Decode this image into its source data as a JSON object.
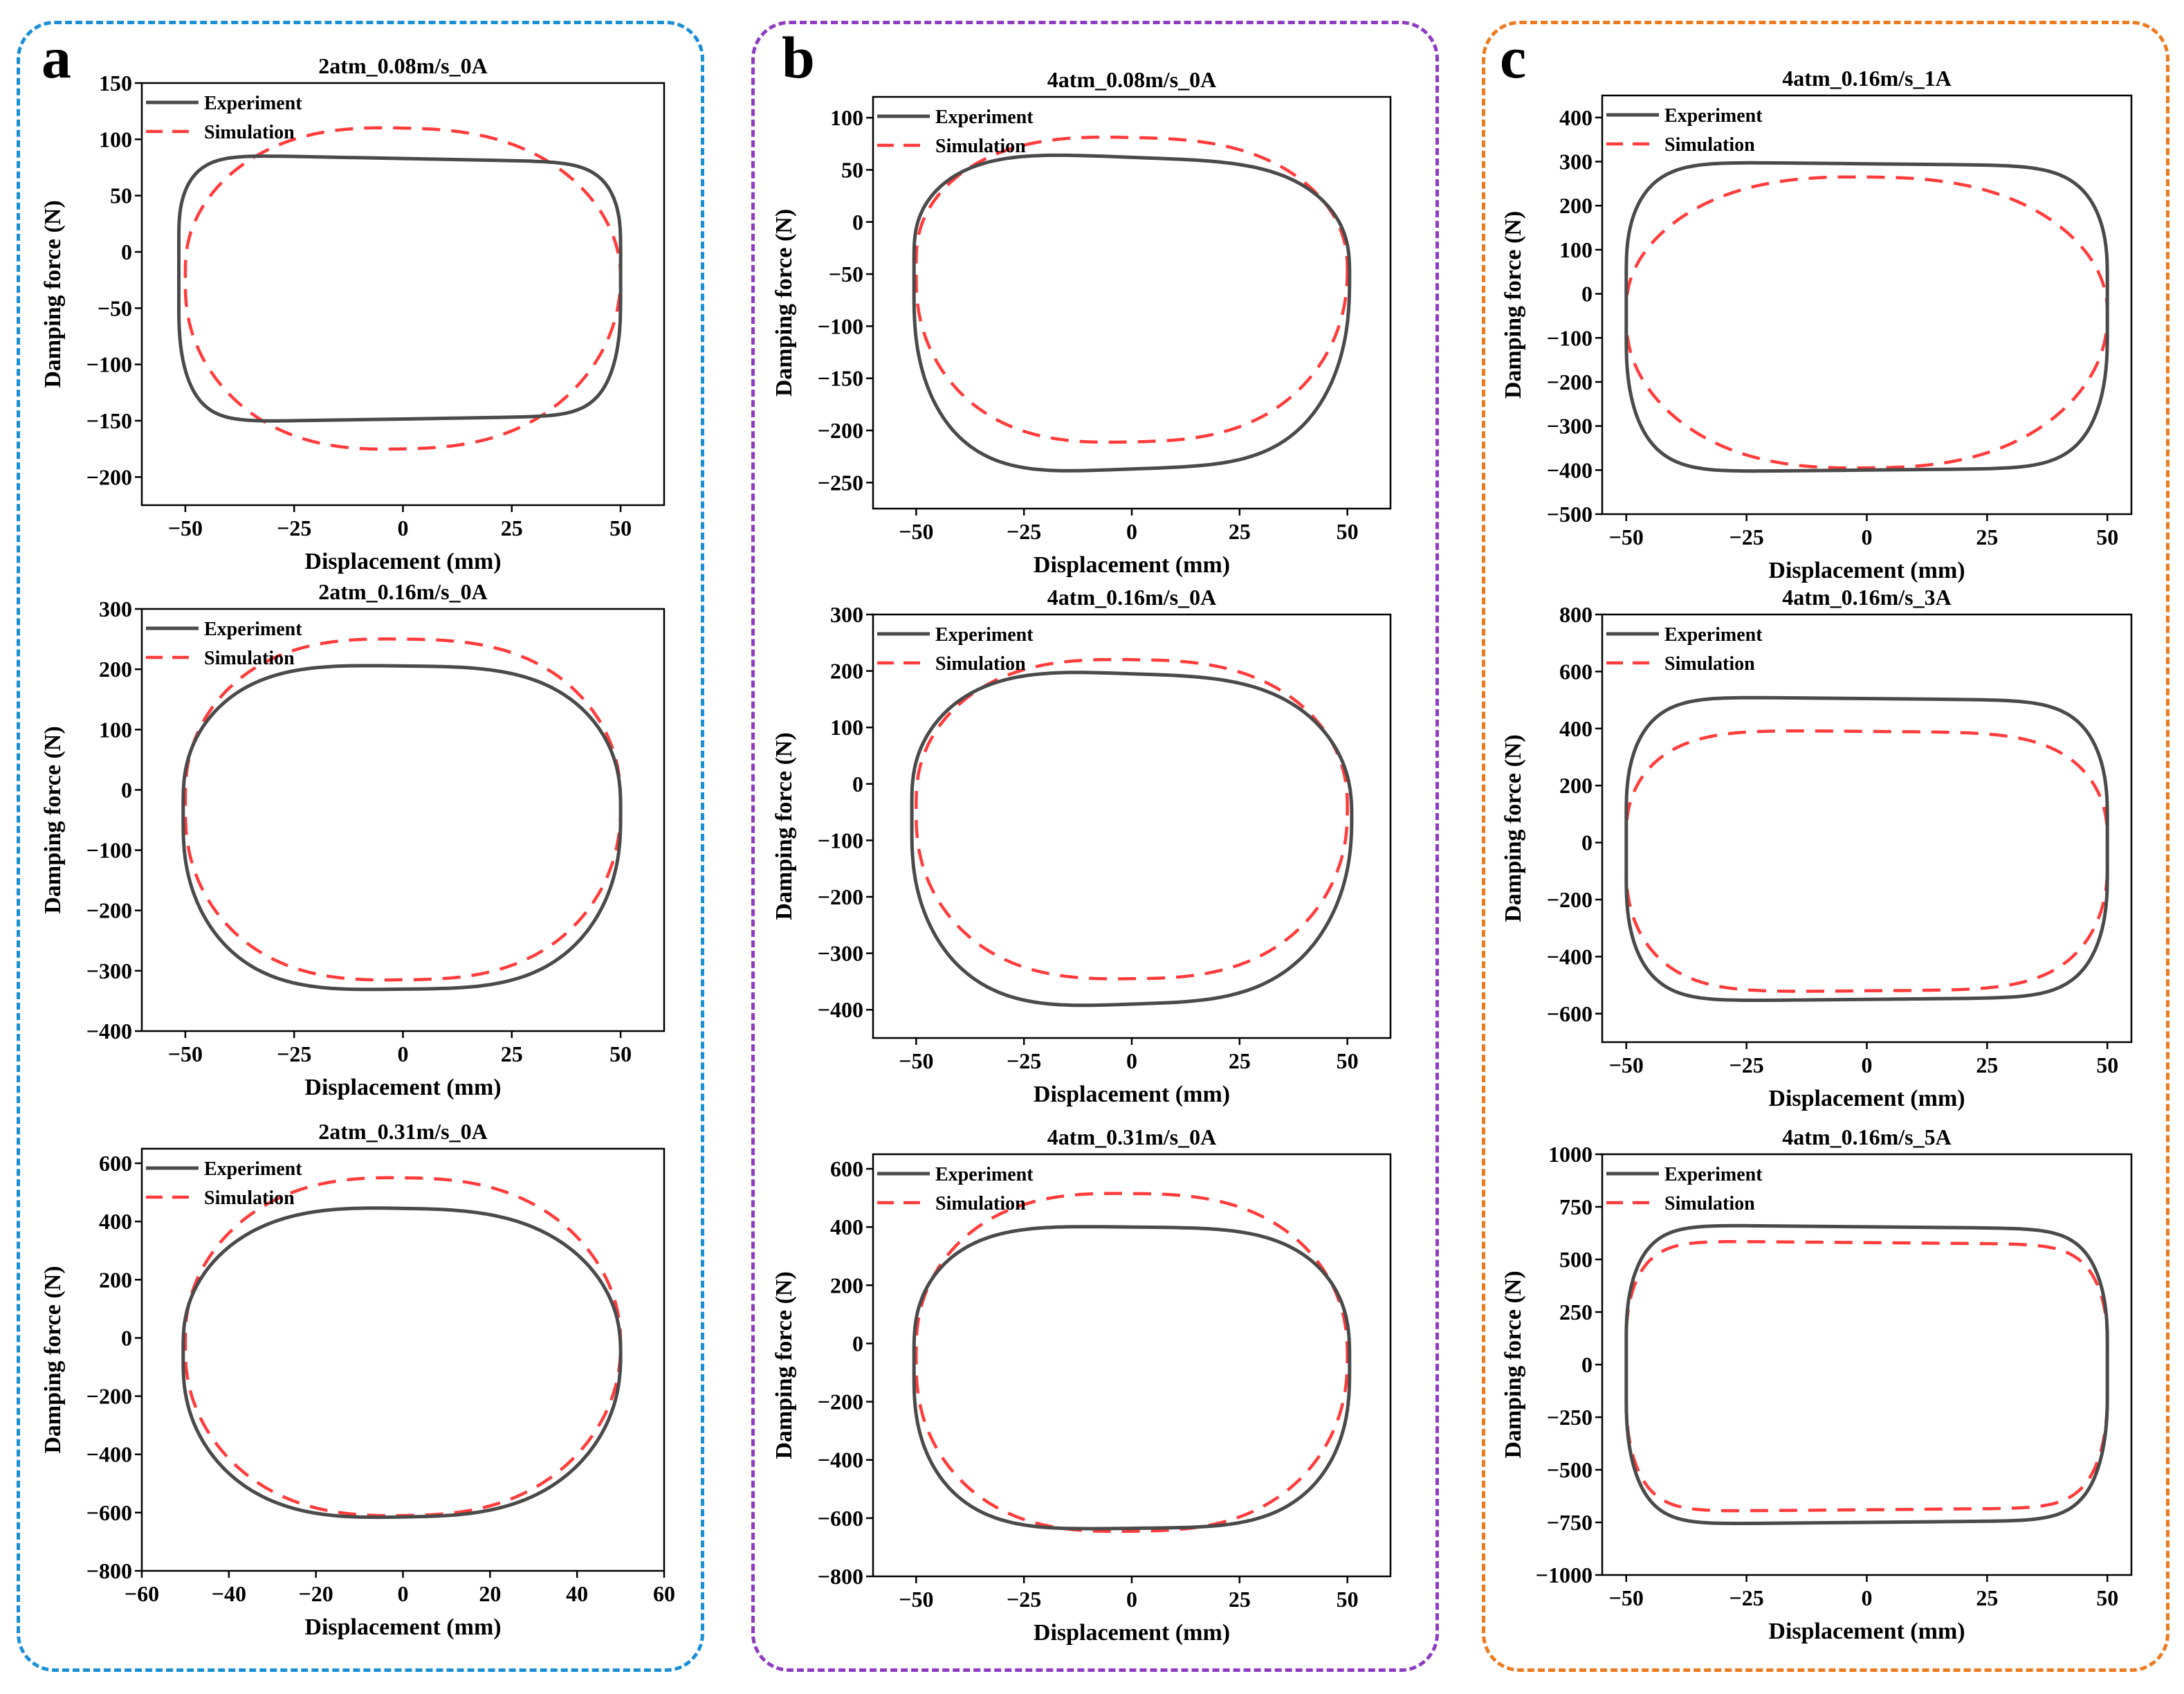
{
  "figure": {
    "colors": {
      "experiment": "#4a4a4a",
      "simulation": "#ff3b3b",
      "frame_a": "#1a8fd6",
      "frame_b": "#8e3cc2",
      "frame_c": "#ec7a1e"
    }
  },
  "groups": [
    {
      "label": "a"
    },
    {
      "label": "b"
    },
    {
      "label": "c"
    }
  ],
  "chart_data": [
    {
      "type": "line",
      "group": "a",
      "title": "2atm_0.08m/s_0A",
      "xlabel": "Displacement (mm)",
      "ylabel": "Damping force (N)",
      "xlim": [
        -60,
        60
      ],
      "ylim": [
        -225,
        150
      ],
      "xticks": [
        -50,
        -25,
        0,
        25,
        50
      ],
      "yticks": [
        -200,
        -150,
        -100,
        -50,
        0,
        50,
        100,
        150
      ],
      "legend": [
        "Experiment",
        "Simulation"
      ],
      "legend_position": "top-left",
      "series": [
        {
          "name": "Experiment",
          "style": "solid",
          "xc": -0.75,
          "yc": -42.5,
          "xa": 50.75,
          "ya": 125.5,
          "xb": 50.75,
          "yb": 106,
          "p": 10,
          "sk": 0.2,
          "fade": 0.5
        },
        {
          "name": "Simulation",
          "style": "dashed",
          "xc": 0,
          "yc": -32.5,
          "xa": 50,
          "ya": 142.5,
          "xb": 50,
          "yb": 142.5,
          "p": 2.6,
          "sk": 0.2,
          "fade": 0.3
        }
      ]
    },
    {
      "type": "line",
      "group": "a",
      "title": "2atm_0.16m/s_0A",
      "xlabel": "Displacement (mm)",
      "ylabel": "Damping force (N)",
      "xlim": [
        -60,
        60
      ],
      "ylim": [
        -400,
        300
      ],
      "xticks": [
        -50,
        -25,
        0,
        25,
        50
      ],
      "yticks": [
        -400,
        -300,
        -200,
        -100,
        0,
        100,
        200,
        300
      ],
      "legend": [
        "Experiment",
        "Simulation"
      ],
      "legend_position": "top-left",
      "series": [
        {
          "name": "Experiment",
          "style": "solid",
          "xc": -0.25,
          "yc": -62.5,
          "xa": 50.25,
          "ya": 268,
          "xb": 50.25,
          "yb": 268,
          "p": 3.5,
          "sk": 0.1,
          "fade": 0.4
        },
        {
          "name": "Simulation",
          "style": "dashed",
          "xc": 0,
          "yc": -32.5,
          "xa": 50,
          "ya": 282.5,
          "xb": 50,
          "yb": 282.5,
          "p": 2.8,
          "sk": 0.1,
          "fade": 0.3
        }
      ]
    },
    {
      "type": "line",
      "group": "a",
      "title": "2atm_0.31m/s_0A",
      "xlabel": "Displacement (mm)",
      "ylabel": "Damping force (N)",
      "xlim": [
        -60,
        60
      ],
      "ylim": [
        -800,
        650
      ],
      "xticks": [
        -60,
        -40,
        -20,
        0,
        20,
        40,
        60
      ],
      "yticks": [
        -800,
        -600,
        -400,
        -200,
        0,
        200,
        400,
        600
      ],
      "legend": [
        "Experiment",
        "Simulation"
      ],
      "legend_position": "top-left",
      "series": [
        {
          "name": "Experiment",
          "style": "solid",
          "xc": -0.25,
          "yc": -85,
          "xa": 50.25,
          "ya": 530,
          "xb": 50.25,
          "yb": 530,
          "p": 3.0,
          "sk": 0.15,
          "fade": 0.35
        },
        {
          "name": "Simulation",
          "style": "dashed",
          "xc": 0,
          "yc": -30,
          "xa": 50,
          "ya": 580,
          "xb": 50,
          "yb": 580,
          "p": 2.6,
          "sk": 0.1,
          "fade": 0.3
        }
      ]
    },
    {
      "type": "line",
      "group": "b",
      "title": "4atm_0.08m/s_0A",
      "xlabel": "Displacement (mm)",
      "ylabel": "Damping force (N)",
      "xlim": [
        -60,
        60
      ],
      "ylim": [
        -275,
        120
      ],
      "xticks": [
        -50,
        -25,
        0,
        25,
        50
      ],
      "yticks": [
        -250,
        -200,
        -150,
        -100,
        -50,
        0,
        50,
        100
      ],
      "legend": [
        "Experiment",
        "Simulation"
      ],
      "legend_position": "top-left",
      "series": [
        {
          "name": "Experiment",
          "style": "solid",
          "xc": 0,
          "yc": -87.5,
          "xa": 50.5,
          "ya": 149.5,
          "xb": 50.5,
          "yb": 149.5,
          "p": 4.0,
          "sk": 0.35,
          "fade": 0.4
        },
        {
          "name": "Simulation",
          "style": "dashed",
          "xc": 0,
          "yc": -65,
          "xa": 50,
          "ya": 146,
          "xb": 50,
          "yb": 146,
          "p": 2.8,
          "sk": 0.2,
          "fade": 0.3
        }
      ]
    },
    {
      "type": "line",
      "group": "b",
      "title": "4atm_0.16m/s_0A",
      "xlabel": "Displacement (mm)",
      "ylabel": "Damping force (N)",
      "xlim": [
        -60,
        60
      ],
      "ylim": [
        -450,
        300
      ],
      "xticks": [
        -50,
        -25,
        0,
        25,
        50
      ],
      "yticks": [
        -400,
        -300,
        -200,
        -100,
        0,
        100,
        200,
        300
      ],
      "legend": [
        "Experiment",
        "Simulation"
      ],
      "legend_position": "top-left",
      "series": [
        {
          "name": "Experiment",
          "style": "solid",
          "xc": 0,
          "yc": -97.5,
          "xa": 51,
          "ya": 292.5,
          "xb": 51,
          "yb": 292.5,
          "p": 3.5,
          "sk": 0.3,
          "fade": 0.4
        },
        {
          "name": "Simulation",
          "style": "dashed",
          "xc": 0,
          "yc": -62.5,
          "xa": 50,
          "ya": 282.5,
          "xb": 50,
          "yb": 282.5,
          "p": 2.8,
          "sk": 0.1,
          "fade": 0.3
        }
      ]
    },
    {
      "type": "line",
      "group": "b",
      "title": "4atm_0.31m/s_0A",
      "xlabel": "Displacement (mm)",
      "ylabel": "Damping force (N)",
      "xlim": [
        -60,
        60
      ],
      "ylim": [
        -800,
        650
      ],
      "xticks": [
        -50,
        -25,
        0,
        25,
        50
      ],
      "yticks": [
        -800,
        -600,
        -400,
        -200,
        0,
        200,
        400,
        600
      ],
      "legend": [
        "Experiment",
        "Simulation"
      ],
      "legend_position": "top-left",
      "series": [
        {
          "name": "Experiment",
          "style": "solid",
          "xc": 0,
          "yc": -117.5,
          "xa": 50.5,
          "ya": 517.5,
          "xb": 50.5,
          "yb": 517.5,
          "p": 4.0,
          "sk": 0.1,
          "fade": 0.4
        },
        {
          "name": "Simulation",
          "style": "dashed",
          "xc": 0,
          "yc": -65,
          "xa": 50,
          "ya": 580,
          "xb": 50,
          "yb": 580,
          "p": 2.8,
          "sk": 0.1,
          "fade": 0.3
        }
      ]
    },
    {
      "type": "line",
      "group": "c",
      "title": "4atm_0.16m/s_1A",
      "xlabel": "Displacement (mm)",
      "ylabel": "Damping force (N)",
      "xlim": [
        -55,
        55
      ],
      "ylim": [
        -500,
        450
      ],
      "xticks": [
        -50,
        -25,
        0,
        25,
        50
      ],
      "yticks": [
        -500,
        -400,
        -300,
        -200,
        -100,
        0,
        100,
        200,
        300,
        400
      ],
      "legend": [
        "Experiment",
        "Simulation"
      ],
      "legend_position": "top-left",
      "series": [
        {
          "name": "Experiment",
          "style": "solid",
          "xc": 0,
          "yc": -52.5,
          "xa": 50,
          "ya": 347.5,
          "xb": 50,
          "yb": 347.5,
          "p": 8.0,
          "sk": 0.1,
          "fade": 0.5
        },
        {
          "name": "Simulation",
          "style": "dashed",
          "xc": 0,
          "yc": -65,
          "xa": 50,
          "ya": 330,
          "xb": 50,
          "yb": 330,
          "p": 2.6,
          "sk": 0.1,
          "fade": 0.3
        }
      ]
    },
    {
      "type": "line",
      "group": "c",
      "title": "4atm_0.16m/s_3A",
      "xlabel": "Displacement (mm)",
      "ylabel": "Damping force (N)",
      "xlim": [
        -55,
        55
      ],
      "ylim": [
        -700,
        800
      ],
      "xticks": [
        -50,
        -25,
        0,
        25,
        50
      ],
      "yticks": [
        -600,
        -400,
        -200,
        0,
        200,
        400,
        600,
        800
      ],
      "legend": [
        "Experiment",
        "Simulation"
      ],
      "legend_position": "top-left",
      "series": [
        {
          "name": "Experiment",
          "style": "solid",
          "xc": 0,
          "yc": -22.5,
          "xa": 50,
          "ya": 527.5,
          "xb": 50,
          "yb": 527.5,
          "p": 8.0,
          "sk": 0.1,
          "fade": 0.5
        },
        {
          "name": "Simulation",
          "style": "dashed",
          "xc": 0,
          "yc": -65,
          "xa": 50,
          "ya": 455,
          "xb": 50,
          "yb": 455,
          "p": 5.0,
          "sk": 0.1,
          "fade": 0.5
        }
      ]
    },
    {
      "type": "line",
      "group": "c",
      "title": "4atm_0.16m/s_5A",
      "xlabel": "Displacement (mm)",
      "ylabel": "Damping force (N)",
      "xlim": [
        -55,
        55
      ],
      "ylim": [
        -1000,
        1000
      ],
      "xticks": [
        -50,
        -25,
        0,
        25,
        50
      ],
      "yticks": [
        -1000,
        -750,
        -500,
        -250,
        0,
        250,
        500,
        750,
        1000
      ],
      "legend": [
        "Experiment",
        "Simulation"
      ],
      "legend_position": "top-left",
      "series": [
        {
          "name": "Experiment",
          "style": "solid",
          "xc": 0,
          "yc": -47.5,
          "xa": 50,
          "ya": 702.5,
          "xb": 50,
          "yb": 702.5,
          "p": 10.0,
          "sk": 0.1,
          "fade": 0.6
        },
        {
          "name": "Simulation",
          "style": "dashed",
          "xc": 0,
          "yc": -55,
          "xa": 50,
          "ya": 635,
          "xb": 50,
          "yb": 635,
          "p": 10.0,
          "sk": 0.1,
          "fade": 0.6
        }
      ]
    }
  ]
}
